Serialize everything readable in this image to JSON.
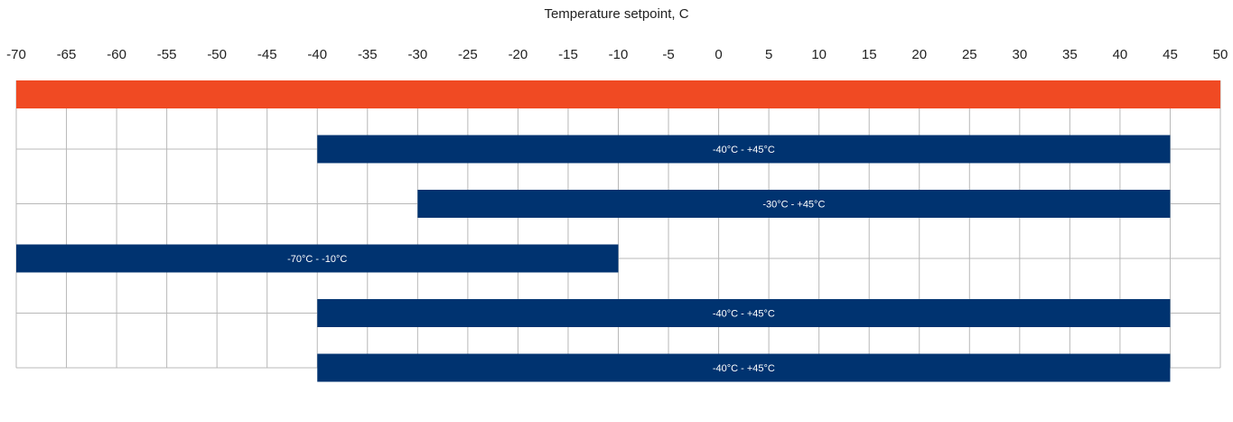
{
  "chart_data": {
    "type": "bar",
    "orientation": "horizontal-range",
    "title": "Temperature setpoint, C",
    "xlabel": "",
    "ylabel": "",
    "xlim": [
      -70,
      50
    ],
    "x_ticks": [
      -70,
      -65,
      -60,
      -55,
      -50,
      -45,
      -40,
      -35,
      -30,
      -25,
      -20,
      -15,
      -10,
      -5,
      0,
      5,
      10,
      15,
      20,
      25,
      30,
      35,
      40,
      45,
      50
    ],
    "grid": true,
    "legend": "none",
    "colors": {
      "highlight": "#f04a23",
      "range": "#003370",
      "grid": "#b8b8b8"
    },
    "rows": [
      {
        "start": -70,
        "end": 50,
        "label": "",
        "color": "#f04a23",
        "grid": false
      },
      {
        "start": -40,
        "end": 45,
        "label": "-40°C - +45°C",
        "color": "#003370",
        "grid": true
      },
      {
        "start": -30,
        "end": 45,
        "label": "-30°C - +45°C",
        "color": "#003370",
        "grid": true
      },
      {
        "start": -70,
        "end": -10,
        "label": "-70°C - -10°C",
        "color": "#003370",
        "grid": true
      },
      {
        "start": -40,
        "end": 45,
        "label": "-40°C - +45°C",
        "color": "#003370",
        "grid": true
      },
      {
        "start": -40,
        "end": 45,
        "label": "-40°C - +45°C",
        "color": "#003370",
        "grid": true
      }
    ]
  }
}
